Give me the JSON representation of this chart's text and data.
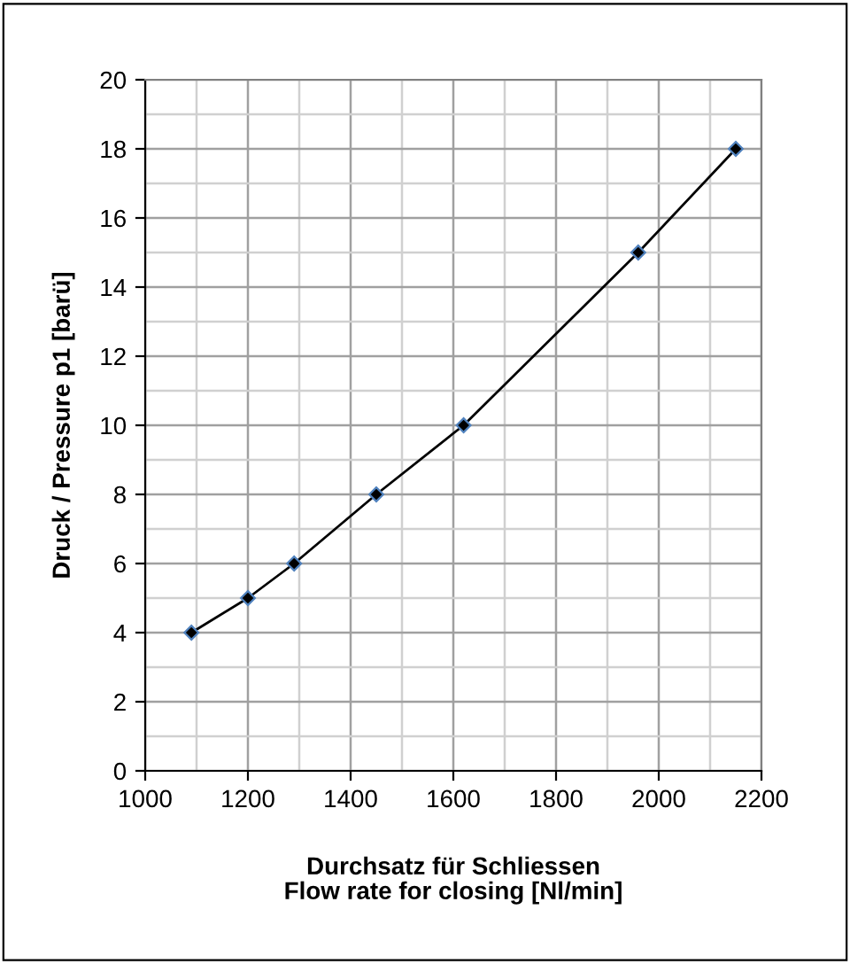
{
  "chart_data": {
    "type": "line",
    "xlabel": "Durchsatz für Schliessen\nFlow rate for closing [Nl/min]",
    "ylabel": "Druck / Pressure p1 [barü]",
    "x": [
      1090,
      1200,
      1290,
      1450,
      1620,
      1960,
      2150
    ],
    "series": [
      {
        "color": "#000000",
        "values": [
          4,
          5,
          6,
          8,
          10,
          15,
          18
        ]
      }
    ],
    "marker": "diamond",
    "line_style": "solid",
    "xlim": [
      1000,
      2200
    ],
    "ylim": [
      0,
      20
    ],
    "xticks": [
      1000,
      {
        "value": 1100,
        "label": null
      },
      1200,
      {
        "value": 1300,
        "label": null
      },
      1400,
      {
        "value": 1500,
        "label": null
      },
      1600,
      {
        "value": 1700,
        "label": null
      },
      1800,
      {
        "value": 1900,
        "label": null
      },
      2000,
      {
        "value": 2100,
        "label": null
      },
      2200
    ],
    "yticks": [
      0,
      {
        "value": 1,
        "label": null
      },
      2,
      {
        "value": 3,
        "label": null
      },
      4,
      {
        "value": 5,
        "label": null
      },
      6,
      {
        "value": 7,
        "label": null
      },
      8,
      {
        "value": 9,
        "label": null
      },
      10,
      {
        "value": 11,
        "label": null
      },
      12,
      {
        "value": 13,
        "label": null
      },
      14,
      {
        "value": 15,
        "label": null
      },
      16,
      {
        "value": 17,
        "label": null
      },
      18,
      {
        "value": 19,
        "label": null
      },
      20
    ],
    "grid": true
  }
}
